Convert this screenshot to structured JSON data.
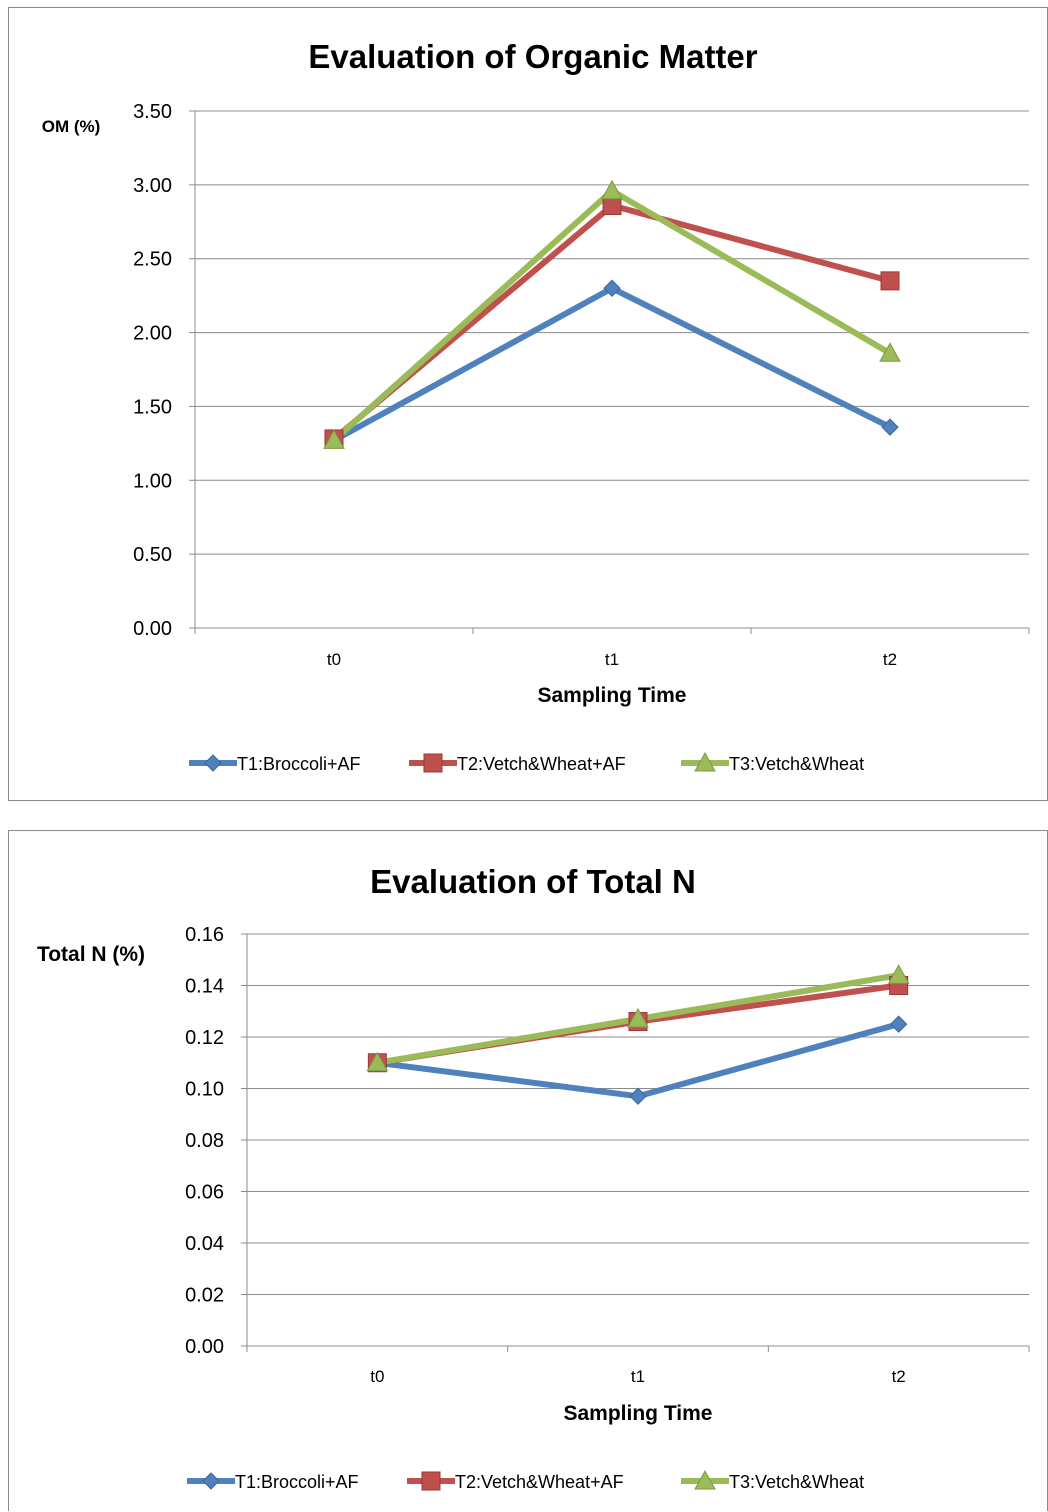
{
  "chart_data": [
    {
      "type": "line",
      "title": "Evaluation of Organic Matter",
      "xlabel": "Sampling Time",
      "ylabel": "OM (%)",
      "categories": [
        "t0",
        "t1",
        "t2"
      ],
      "yticks": [
        "0.00",
        "0.50",
        "1.00",
        "1.50",
        "2.00",
        "2.50",
        "3.00",
        "3.50"
      ],
      "ylim": [
        0,
        3.5
      ],
      "grid": true,
      "legend_position": "bottom",
      "series": [
        {
          "name": "T1:Broccoli+AF",
          "color": "#4f81bd",
          "marker": "diamond",
          "values": [
            1.27,
            2.3,
            1.36
          ]
        },
        {
          "name": "T2:Vetch&Wheat+AF",
          "color": "#c0504d",
          "marker": "square",
          "values": [
            1.28,
            2.86,
            2.35
          ]
        },
        {
          "name": "T3:Vetch&Wheat",
          "color": "#9bbb59",
          "marker": "triangle",
          "values": [
            1.27,
            2.96,
            1.86
          ]
        }
      ]
    },
    {
      "type": "line",
      "title": "Evaluation of Total N",
      "xlabel": "Sampling Time",
      "ylabel": "Total N (%)",
      "categories": [
        "t0",
        "t1",
        "t2"
      ],
      "yticks": [
        "0.00",
        "0.02",
        "0.04",
        "0.06",
        "0.08",
        "0.10",
        "0.12",
        "0.14",
        "0.16"
      ],
      "ylim": [
        0,
        0.16
      ],
      "grid": true,
      "legend_position": "bottom",
      "series": [
        {
          "name": "T1:Broccoli+AF",
          "color": "#4f81bd",
          "marker": "diamond",
          "values": [
            0.11,
            0.097,
            0.125
          ]
        },
        {
          "name": "T2:Vetch&Wheat+AF",
          "color": "#c0504d",
          "marker": "square",
          "values": [
            0.11,
            0.126,
            0.14
          ]
        },
        {
          "name": "T3:Vetch&Wheat",
          "color": "#9bbb59",
          "marker": "triangle",
          "values": [
            0.11,
            0.127,
            0.144
          ]
        }
      ]
    }
  ]
}
